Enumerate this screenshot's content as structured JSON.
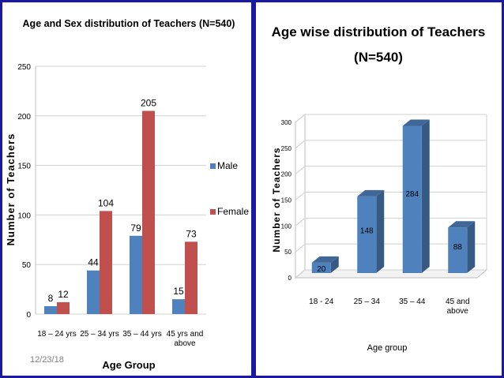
{
  "footer": {
    "date": "12/23/18"
  },
  "chart_data": [
    {
      "type": "bar",
      "title": "Age and Sex distribution of Teachers  (N=540)",
      "xlabel": "Age Group",
      "ylabel": "Number of Teachers",
      "ylim": [
        0,
        250
      ],
      "yticks": [
        "0",
        "50",
        "100",
        "150",
        "200",
        "250"
      ],
      "grid": true,
      "legend": "right",
      "categories": [
        "18 – 24 yrs",
        "25 – 34 yrs",
        "35 – 44 yrs",
        "45 yrs and above"
      ],
      "series": [
        {
          "name": "Male",
          "color": "#4f81bd",
          "values": [
            8,
            44,
            79,
            15
          ]
        },
        {
          "name": "Female",
          "color": "#c0504d",
          "values": [
            12,
            104,
            205,
            73
          ]
        }
      ]
    },
    {
      "type": "bar",
      "title": "Age wise distribution  of Teachers",
      "subtitle": "(N=540)",
      "xlabel": "Age group",
      "ylabel": "Number of Teachers",
      "ylim": [
        0,
        300
      ],
      "yticks": [
        "0",
        "50",
        "100",
        "150",
        "200",
        "250",
        "300"
      ],
      "grid": true,
      "style": "3d",
      "categories": [
        "18 - 24",
        "25 – 34",
        "35 – 44",
        "45 and above"
      ],
      "series": [
        {
          "name": "",
          "color": "#4f81bd",
          "values": [
            20,
            148,
            284,
            88
          ]
        }
      ]
    }
  ]
}
